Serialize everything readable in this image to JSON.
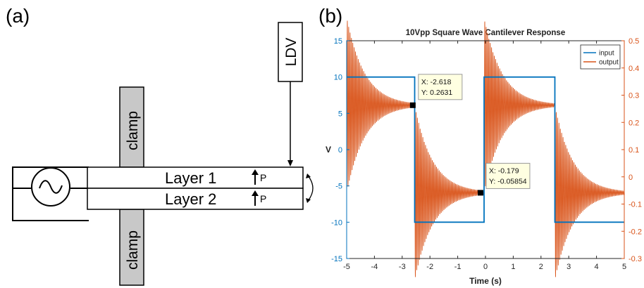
{
  "figure": {
    "panel_a_label": "(a)",
    "panel_b_label": "(b)"
  },
  "diagram": {
    "clamp_top": "clamp",
    "clamp_bottom": "clamp",
    "ldv": "LDV",
    "layer1": "Layer 1",
    "layer2": "Layer 2",
    "p1": "P",
    "p2": "P",
    "source_icon": "ac-source-icon",
    "polarization_icon": "up-arrow-icon"
  },
  "chart_data": {
    "type": "line",
    "title": "10Vpp Square Wave Cantilever Response",
    "xlabel": "Time (s)",
    "ylabel": "V",
    "y2label": "",
    "xlim": [
      -5,
      5
    ],
    "ylim": [
      -15,
      15
    ],
    "y2lim": [
      -0.3,
      0.5
    ],
    "xticks": [
      "-5",
      "-4",
      "-3",
      "-2",
      "-1",
      "0",
      "1",
      "2",
      "3",
      "4",
      "5"
    ],
    "yticks": [
      "-15",
      "-10",
      "-5",
      "0",
      "5",
      "10",
      "15"
    ],
    "y2ticks": [
      "-0.3",
      "-0.2",
      "-0.1",
      "0",
      "0.1",
      "0.2",
      "0.3",
      "0.4",
      "0.5"
    ],
    "grid": false,
    "legend_position": "top-right",
    "series": [
      {
        "name": "input",
        "axis": "left",
        "color": "#0072BD",
        "x": [
          -5,
          -2.55,
          -2.55,
          -0.05,
          -0.05,
          2.5,
          2.5,
          5
        ],
        "y": [
          10,
          10,
          -10,
          -10,
          10,
          10,
          -10,
          -10
        ]
      },
      {
        "name": "output",
        "axis": "right",
        "color": "#D95319",
        "description_segments": [
          {
            "start": -5,
            "end": -2.55,
            "baseline": 0.2631,
            "step_from": -0.0585
          },
          {
            "start": -2.55,
            "end": -0.05,
            "baseline": -0.0585,
            "step_from": 0.2631
          },
          {
            "start": -0.05,
            "end": 2.5,
            "baseline": 0.2631,
            "step_from": -0.0585
          },
          {
            "start": 2.5,
            "end": 5,
            "baseline": -0.0585,
            "step_from": 0.2631
          }
        ]
      }
    ],
    "datatips": [
      {
        "x_text": "X: -2.618",
        "y_text": "Y: 0.2631",
        "x": -2.618,
        "y": 0.2631,
        "axis": "right"
      },
      {
        "x_text": "X: -0.179",
        "y_text": "Y: -0.05854",
        "x": -0.179,
        "y": -0.05854,
        "axis": "right"
      }
    ],
    "legend": [
      "input",
      "output"
    ]
  }
}
